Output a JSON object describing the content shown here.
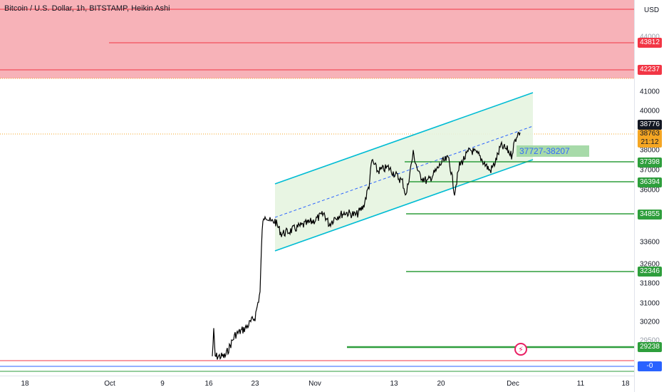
{
  "header": {
    "symbol_title": "Bitcoin / U.S. Dollar, 1h, BITSTAMP, Heikin Ashi"
  },
  "price_axis": {
    "currency": "USD",
    "ticks": [
      "44000",
      "41000",
      "40000",
      "38000",
      "37000",
      "36000",
      "33600",
      "32600",
      "31800",
      "31000",
      "30200",
      "29500"
    ],
    "tags": {
      "resistance_1": "43812",
      "resistance_2": "42237",
      "last_price": "38776",
      "bar_close": "38763",
      "countdown": "21:12",
      "support_1": "37398",
      "support_2": "36394",
      "support_3": "34855",
      "support_4": "32346",
      "support_5": "29238",
      "blue_tag": "-0"
    }
  },
  "time_axis": {
    "labels": [
      "18",
      "Oct",
      "9",
      "16",
      "23",
      "Nov",
      "13",
      "20",
      "Dec",
      "11",
      "18"
    ]
  },
  "annotations": {
    "zone_label": "37727-38207",
    "alert_icon": "lightning-icon"
  },
  "colors": {
    "resistance_zone": "#f7b2b8",
    "channel_fill": "#e6f4e0",
    "channel_line": "#00bcd4",
    "support_line": "#2e9e3c",
    "resistance_line": "#f23645",
    "midline": "#2962ff",
    "candle": "#000000"
  }
}
